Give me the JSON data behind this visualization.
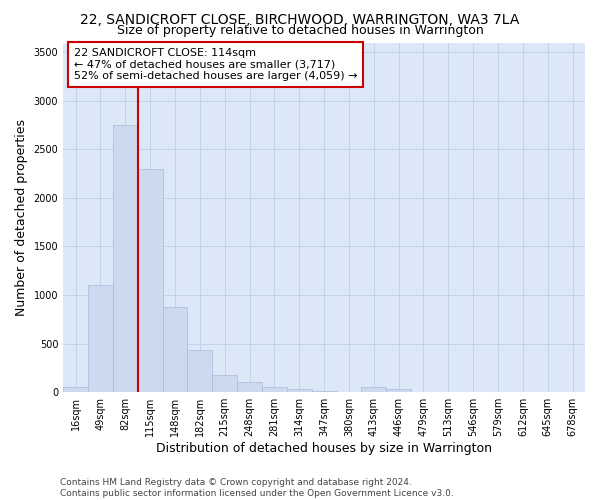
{
  "title": "22, SANDICROFT CLOSE, BIRCHWOOD, WARRINGTON, WA3 7LA",
  "subtitle": "Size of property relative to detached houses in Warrington",
  "xlabel": "Distribution of detached houses by size in Warrington",
  "ylabel": "Number of detached properties",
  "footer_line1": "Contains HM Land Registry data © Crown copyright and database right 2024.",
  "footer_line2": "Contains public sector information licensed under the Open Government Licence v3.0.",
  "categories": [
    "16sqm",
    "49sqm",
    "82sqm",
    "115sqm",
    "148sqm",
    "182sqm",
    "215sqm",
    "248sqm",
    "281sqm",
    "314sqm",
    "347sqm",
    "380sqm",
    "413sqm",
    "446sqm",
    "479sqm",
    "513sqm",
    "546sqm",
    "579sqm",
    "612sqm",
    "645sqm",
    "678sqm"
  ],
  "values": [
    50,
    1100,
    2750,
    2300,
    880,
    430,
    175,
    100,
    55,
    30,
    10,
    5,
    55,
    30,
    0,
    0,
    0,
    0,
    0,
    0,
    0
  ],
  "bar_color": "#ccdaf0",
  "bar_edge_color": "#aabbd8",
  "bg_axes_color": "#dce8f8",
  "ylim": [
    0,
    3600
  ],
  "yticks": [
    0,
    500,
    1000,
    1500,
    2000,
    2500,
    3000,
    3500
  ],
  "property_line_color": "#cc0000",
  "annotation_title": "22 SANDICROFT CLOSE: 114sqm",
  "annotation_line1": "← 47% of detached houses are smaller (3,717)",
  "annotation_line2": "52% of semi-detached houses are larger (4,059) →",
  "annotation_box_color": "#ffffff",
  "annotation_box_edge_color": "#cc0000",
  "bg_color": "#ffffff",
  "grid_color": "#b8cce0",
  "title_fontsize": 10,
  "subtitle_fontsize": 9,
  "axis_label_fontsize": 9,
  "tick_fontsize": 7,
  "annotation_fontsize": 8,
  "footer_fontsize": 6.5
}
